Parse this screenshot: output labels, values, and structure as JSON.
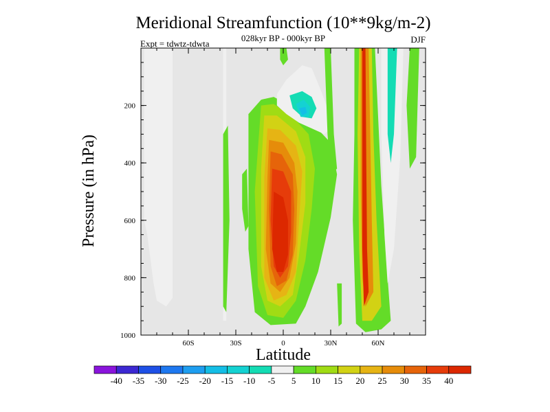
{
  "chart_data": {
    "type": "heatmap",
    "title": "Meridional Streamfunction (10**9kg/m-2)",
    "subtitle": "028kyr BP - 000kyr BP",
    "left_annotation": "Expt = tdwtz-tdwta",
    "right_annotation": "DJF",
    "xlabel": "Latitude",
    "ylabel": "Pressure (in hPa)",
    "x_range": [
      -90,
      90
    ],
    "y_range": [
      0,
      1000
    ],
    "x_ticks": [
      {
        "value": -60,
        "label": "60S"
      },
      {
        "value": -30,
        "label": "30S"
      },
      {
        "value": 0,
        "label": "0"
      },
      {
        "value": 30,
        "label": "30N"
      },
      {
        "value": 60,
        "label": "60N"
      }
    ],
    "y_ticks": [
      {
        "value": 200,
        "label": "200"
      },
      {
        "value": 400,
        "label": "400"
      },
      {
        "value": 600,
        "label": "600"
      },
      {
        "value": 800,
        "label": "800"
      },
      {
        "value": 1000,
        "label": "1000"
      }
    ],
    "background_color": "#e6e6e6",
    "colorbar": {
      "labels": [
        "-40",
        "-35",
        "-30",
        "-25",
        "-20",
        "-15",
        "-10",
        "-5",
        "5",
        "10",
        "15",
        "20",
        "25",
        "30",
        "35",
        "40"
      ],
      "colors": [
        "#8a14dc",
        "#3c28d2",
        "#1e50e6",
        "#1e78f0",
        "#1e9ef0",
        "#14bee6",
        "#14d2d2",
        "#14dcb4",
        "#f0f0f0",
        "#64dc28",
        "#a0dc14",
        "#d2d214",
        "#e6b414",
        "#e68c0a",
        "#e6640a",
        "#e63c0a",
        "#dc2800"
      ]
    },
    "contour_regions": [
      {
        "name": "sh-polar-cell",
        "value": -5,
        "points": [
          [
            -88,
            0
          ],
          [
            -70,
            0
          ],
          [
            -70,
            870
          ],
          [
            -74,
            900
          ],
          [
            -80,
            880
          ],
          [
            -82,
            820
          ],
          [
            -86,
            650
          ],
          [
            -88,
            600
          ]
        ]
      },
      {
        "name": "sh-subtropics-band",
        "value": -5,
        "points": [
          [
            -38,
            0
          ],
          [
            -36,
            0
          ],
          [
            -36,
            950
          ],
          [
            -38,
            950
          ]
        ]
      },
      {
        "name": "tropical-positive-5",
        "value": 5,
        "points": [
          [
            -22,
            230
          ],
          [
            -14,
            180
          ],
          [
            -6,
            170
          ],
          [
            4,
            200
          ],
          [
            18,
            260
          ],
          [
            30,
            330
          ],
          [
            34,
            440
          ],
          [
            30,
            590
          ],
          [
            22,
            780
          ],
          [
            14,
            900
          ],
          [
            8,
            960
          ],
          [
            -8,
            965
          ],
          [
            -18,
            920
          ],
          [
            -22,
            700
          ]
        ]
      },
      {
        "name": "tropical-positive-10",
        "value": 10,
        "points": [
          [
            -14,
            200
          ],
          [
            -6,
            195
          ],
          [
            6,
            240
          ],
          [
            16,
            300
          ],
          [
            20,
            420
          ],
          [
            18,
            560
          ],
          [
            14,
            740
          ],
          [
            8,
            880
          ],
          [
            0,
            940
          ],
          [
            -10,
            930
          ],
          [
            -16,
            830
          ],
          [
            -18,
            500
          ]
        ]
      },
      {
        "name": "tropical-positive-15",
        "value": 15,
        "points": [
          [
            -12,
            235
          ],
          [
            -4,
            235
          ],
          [
            8,
            290
          ],
          [
            14,
            380
          ],
          [
            14,
            540
          ],
          [
            10,
            720
          ],
          [
            6,
            860
          ],
          [
            -2,
            900
          ],
          [
            -10,
            880
          ],
          [
            -14,
            760
          ],
          [
            -14,
            420
          ]
        ]
      },
      {
        "name": "tropical-positive-20",
        "value": 20,
        "points": [
          [
            -10,
            280
          ],
          [
            -2,
            285
          ],
          [
            8,
            340
          ],
          [
            12,
            430
          ],
          [
            10,
            600
          ],
          [
            8,
            780
          ],
          [
            2,
            860
          ],
          [
            -6,
            880
          ],
          [
            -12,
            800
          ],
          [
            -12,
            450
          ]
        ]
      },
      {
        "name": "tropical-positive-25",
        "value": 25,
        "points": [
          [
            -9,
            320
          ],
          [
            0,
            330
          ],
          [
            7,
            400
          ],
          [
            9,
            500
          ],
          [
            8,
            680
          ],
          [
            4,
            800
          ],
          [
            -2,
            850
          ],
          [
            -8,
            820
          ],
          [
            -11,
            700
          ],
          [
            -10,
            450
          ]
        ]
      },
      {
        "name": "tropical-positive-30",
        "value": 30,
        "points": [
          [
            -8,
            360
          ],
          [
            -1,
            370
          ],
          [
            6,
            440
          ],
          [
            7,
            560
          ],
          [
            6,
            720
          ],
          [
            2,
            810
          ],
          [
            -4,
            830
          ],
          [
            -8,
            760
          ],
          [
            -9,
            560
          ]
        ]
      },
      {
        "name": "tropical-positive-35",
        "value": 35,
        "points": [
          [
            -7,
            420
          ],
          [
            0,
            430
          ],
          [
            5,
            500
          ],
          [
            5,
            640
          ],
          [
            3,
            760
          ],
          [
            -2,
            800
          ],
          [
            -6,
            760
          ],
          [
            -8,
            600
          ]
        ]
      },
      {
        "name": "tropical-core-40",
        "value": 40,
        "points": [
          [
            -6,
            500
          ],
          [
            0,
            520
          ],
          [
            3,
            600
          ],
          [
            3,
            720
          ],
          [
            0,
            780
          ],
          [
            -4,
            780
          ],
          [
            -7,
            700
          ]
        ]
      },
      {
        "name": "upper-negative-5",
        "value": -5,
        "points": [
          [
            -4,
            160
          ],
          [
            2,
            110
          ],
          [
            12,
            60
          ],
          [
            18,
            70
          ],
          [
            24,
            150
          ],
          [
            28,
            210
          ],
          [
            30,
            280
          ],
          [
            26,
            300
          ],
          [
            18,
            280
          ],
          [
            10,
            260
          ],
          [
            2,
            230
          ],
          [
            -4,
            200
          ]
        ]
      },
      {
        "name": "upper-negative-10",
        "value": -10,
        "points": [
          [
            4,
            165
          ],
          [
            12,
            150
          ],
          [
            18,
            170
          ],
          [
            21,
            210
          ],
          [
            18,
            245
          ],
          [
            12,
            240
          ],
          [
            6,
            210
          ]
        ]
      },
      {
        "name": "upper-negative-15",
        "value": -15,
        "points": [
          [
            8,
            195
          ],
          [
            13,
            180
          ],
          [
            17,
            205
          ],
          [
            16,
            240
          ],
          [
            11,
            240
          ]
        ]
      },
      {
        "name": "upper-negative-20",
        "value": -20,
        "points": [
          [
            10,
            210
          ],
          [
            14,
            205
          ],
          [
            15,
            225
          ],
          [
            12,
            235
          ]
        ]
      },
      {
        "name": "nh-midlat-positive-5",
        "value": 5,
        "points": [
          [
            45,
            0
          ],
          [
            58,
            0
          ],
          [
            60,
            240
          ],
          [
            62,
            480
          ],
          [
            66,
            800
          ],
          [
            68,
            950
          ],
          [
            62,
            980
          ],
          [
            52,
            990
          ],
          [
            46,
            960
          ],
          [
            44,
            600
          ],
          [
            45,
            300
          ]
        ]
      },
      {
        "name": "nh-midlat-positive-15",
        "value": 15,
        "points": [
          [
            48,
            0
          ],
          [
            56,
            0
          ],
          [
            57,
            300
          ],
          [
            59,
            600
          ],
          [
            62,
            900
          ],
          [
            56,
            950
          ],
          [
            50,
            950
          ],
          [
            48,
            700
          ],
          [
            47,
            300
          ]
        ]
      },
      {
        "name": "nh-midlat-positive-25",
        "value": 25,
        "points": [
          [
            49,
            0
          ],
          [
            54,
            0
          ],
          [
            55,
            300
          ],
          [
            56,
            600
          ],
          [
            57,
            850
          ],
          [
            52,
            900
          ],
          [
            50,
            800
          ],
          [
            49,
            500
          ]
        ]
      },
      {
        "name": "nh-midlat-core-40",
        "value": 40,
        "points": [
          [
            50,
            0
          ],
          [
            52,
            0
          ],
          [
            52.5,
            400
          ],
          [
            53,
            700
          ],
          [
            54,
            850
          ],
          [
            51,
            900
          ],
          [
            50,
            700
          ],
          [
            50,
            300
          ]
        ]
      },
      {
        "name": "nh-highlat-negative-5",
        "value": -5,
        "points": [
          [
            62,
            0
          ],
          [
            76,
            0
          ],
          [
            74,
            380
          ],
          [
            70,
            700
          ],
          [
            66,
            820
          ],
          [
            64,
            650
          ],
          [
            62,
            300
          ]
        ]
      },
      {
        "name": "nh-highlat-negative-10",
        "value": -10,
        "points": [
          [
            66,
            0
          ],
          [
            72,
            0
          ],
          [
            70,
            300
          ],
          [
            68,
            400
          ],
          [
            66,
            300
          ]
        ]
      },
      {
        "name": "sh-tropics-positive",
        "value": 5,
        "points": [
          [
            -38,
            300
          ],
          [
            -35,
            270
          ],
          [
            -34,
            600
          ],
          [
            -36,
            920
          ],
          [
            -38,
            900
          ]
        ]
      },
      {
        "name": "equatorial-small-positive",
        "value": 5,
        "points": [
          [
            -26,
            440
          ],
          [
            -23,
            420
          ],
          [
            -22,
            620
          ],
          [
            -24,
            640
          ],
          [
            -26,
            560
          ]
        ]
      },
      {
        "name": "nh-subtropics-positive-upper",
        "value": 5,
        "points": [
          [
            26,
            0
          ],
          [
            30,
            0
          ],
          [
            32,
            300
          ],
          [
            34,
            420
          ],
          [
            30,
            440
          ],
          [
            28,
            300
          ]
        ]
      },
      {
        "name": "nh-subtropics-positive-lower",
        "value": 5,
        "points": [
          [
            34,
            820
          ],
          [
            37,
            820
          ],
          [
            37,
            960
          ],
          [
            35,
            970
          ]
        ]
      },
      {
        "name": "top-equator-positive",
        "value": 5,
        "points": [
          [
            -2,
            0
          ],
          [
            2,
            0
          ],
          [
            3,
            40
          ],
          [
            0,
            60
          ],
          [
            -2,
            40
          ]
        ]
      },
      {
        "name": "nh-high-positive",
        "value": 5,
        "points": [
          [
            80,
            0
          ],
          [
            86,
            0
          ],
          [
            84,
            380
          ],
          [
            80,
            420
          ],
          [
            78,
            200
          ]
        ]
      }
    ]
  }
}
